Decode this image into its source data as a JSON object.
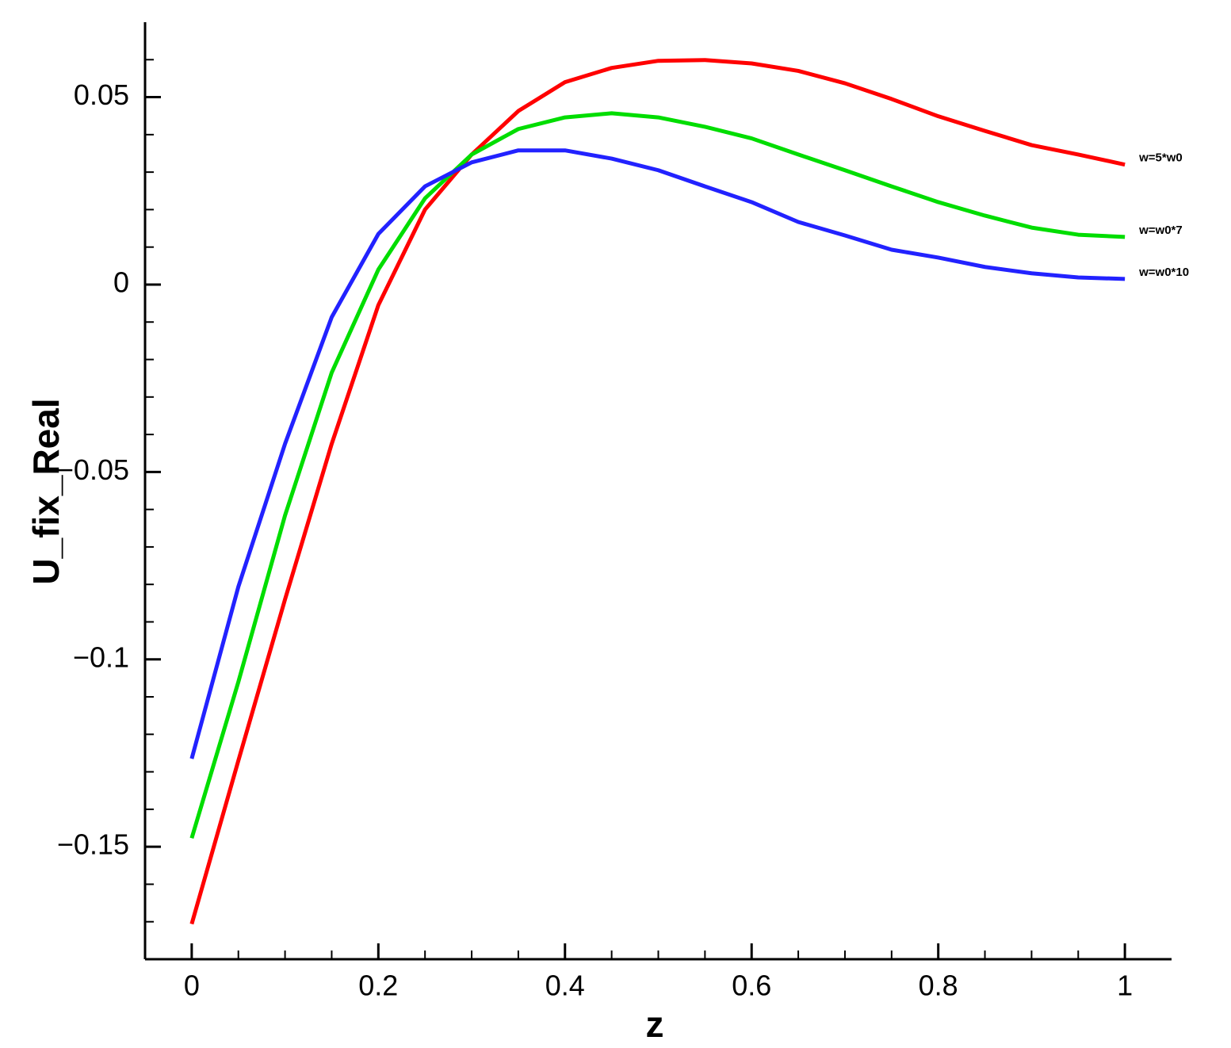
{
  "chart_data": {
    "type": "line",
    "x_label": "z",
    "y_label": "U_fix_Real",
    "x": [
      0,
      0.05,
      0.1,
      0.15,
      0.2,
      0.25,
      0.3,
      0.35,
      0.4,
      0.45,
      0.5,
      0.55,
      0.6,
      0.65,
      0.7,
      0.75,
      0.8,
      0.85,
      0.9,
      0.95,
      1
    ],
    "series": [
      {
        "name": "w=5*w0",
        "color": "#ff0000",
        "values": [
          -0.1706,
          -0.127,
          -0.084,
          -0.0425,
          -0.0055,
          0.02,
          0.0347,
          0.0463,
          0.054,
          0.0578,
          0.0597,
          0.0599,
          0.059,
          0.057,
          0.0537,
          0.0495,
          0.0449,
          0.041,
          0.0372,
          0.0347,
          0.032
        ]
      },
      {
        "name": "w=w0*7",
        "color": "#00dd00",
        "values": [
          -0.1477,
          -0.106,
          -0.0616,
          -0.0235,
          0.004,
          0.023,
          0.0347,
          0.0415,
          0.0446,
          0.0457,
          0.0446,
          0.0421,
          0.039,
          0.0347,
          0.0305,
          0.0262,
          0.022,
          0.0184,
          0.0152,
          0.0133,
          0.0127
        ]
      },
      {
        "name": "w=w0*10",
        "color": "#2222ff",
        "values": [
          -0.1265,
          -0.0806,
          -0.0425,
          -0.0087,
          0.0135,
          0.0262,
          0.0326,
          0.0358,
          0.0358,
          0.0336,
          0.0305,
          0.0262,
          0.022,
          0.0167,
          0.0131,
          0.0093,
          0.0072,
          0.0047,
          0.003,
          0.0019,
          0.0015
        ]
      }
    ],
    "xlim": [
      -0.05,
      1.05
    ],
    "ylim": [
      -0.18,
      0.07
    ],
    "xticks": [
      0,
      0.2,
      0.4,
      0.6,
      0.8,
      1
    ],
    "yticks": [
      {
        "value": -0.15,
        "label": "−0.15"
      },
      {
        "value": -0.1,
        "label": "−0.1"
      },
      {
        "value": -0.05,
        "label": "−0.05"
      },
      0,
      0.05
    ],
    "xminorticks": [
      0.05,
      0.1,
      0.15,
      0.25,
      0.3,
      0.35,
      0.45,
      0.5,
      0.55,
      0.65,
      0.7,
      0.75,
      0.85,
      0.9,
      0.95
    ],
    "yminorticks": [
      -0.17,
      -0.16,
      -0.14,
      -0.13,
      -0.12,
      -0.11,
      -0.09,
      -0.08,
      -0.07,
      -0.06,
      -0.04,
      -0.03,
      -0.02,
      -0.01,
      0.01,
      0.02,
      0.03,
      0.04,
      0.06
    ],
    "grid": false
  }
}
